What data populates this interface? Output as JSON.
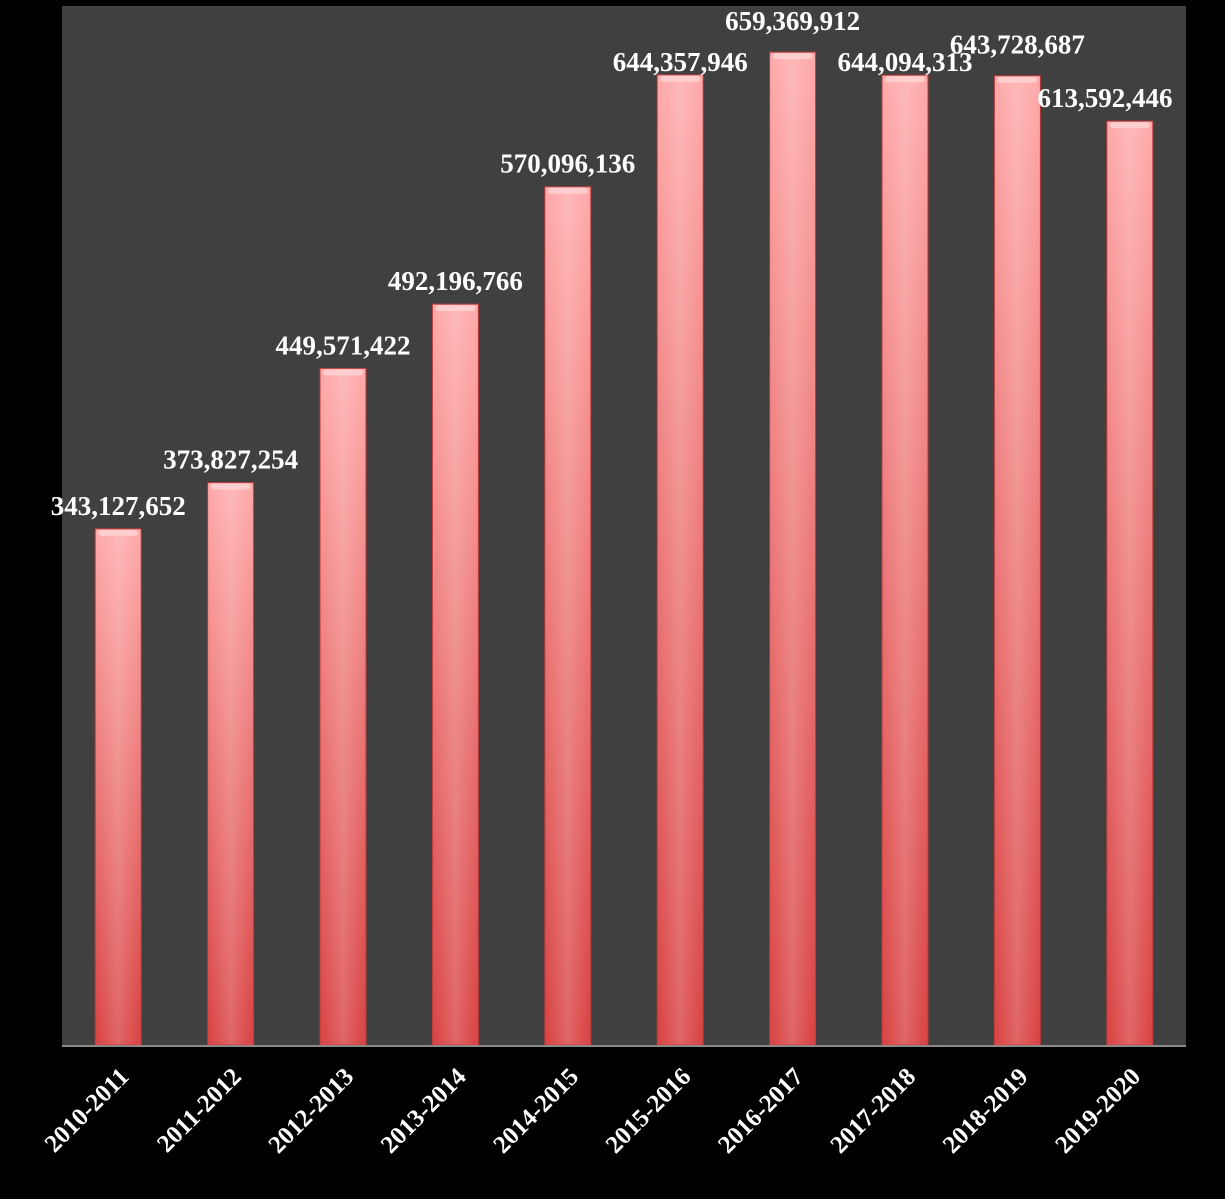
{
  "chart_data": {
    "type": "bar",
    "categories": [
      "2010-2011",
      "2011-2012",
      "2012-2013",
      "2013-2014",
      "2014-2015",
      "2015-2016",
      "2016-2017",
      "2017-2018",
      "2018-2019",
      "2019-2020"
    ],
    "values": [
      343127652,
      373827254,
      449571422,
      492196766,
      570096136,
      644357946,
      659369912,
      644094313,
      643728687,
      613592446
    ],
    "value_labels": [
      "343,127,652",
      "373,827,254",
      "449,571,422",
      "492,196,766",
      "570,096,136",
      "644,357,946",
      "659,369,912",
      "644,094,313",
      "643,728,687",
      "613,592,446"
    ],
    "ylim": [
      0,
      690000000
    ],
    "grid": false,
    "legend": "none",
    "colors": {
      "page_background": "#000000",
      "plot_background": "#404040",
      "bar_top": "#ffaaaa",
      "bar_bottom": "#d94444",
      "axis_line": "#8a8a8a",
      "text": "#ffffff"
    }
  }
}
